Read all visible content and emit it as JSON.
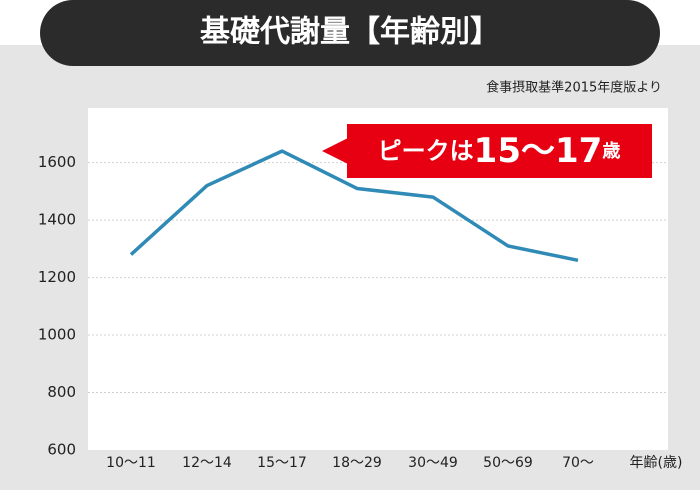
{
  "chart_data": {
    "type": "line",
    "title": "基礎代謝量【年齢別】",
    "source": "食事摂取基準2015年度版より",
    "x_label": "年齢(歳)",
    "categories": [
      "10～11",
      "12～14",
      "15～17",
      "18～29",
      "30～49",
      "50～69",
      "70～"
    ],
    "series": [
      {
        "color": "#2f8ab6",
        "values": [
          1280,
          1520,
          1640,
          1510,
          1480,
          1310,
          1260
        ]
      }
    ],
    "ylim": [
      600,
      1790
    ],
    "yticks": [
      600,
      800,
      1000,
      1200,
      1400,
      1600
    ],
    "grid": true,
    "annotation": [
      "ピークは",
      "15～17",
      "歳"
    ]
  }
}
